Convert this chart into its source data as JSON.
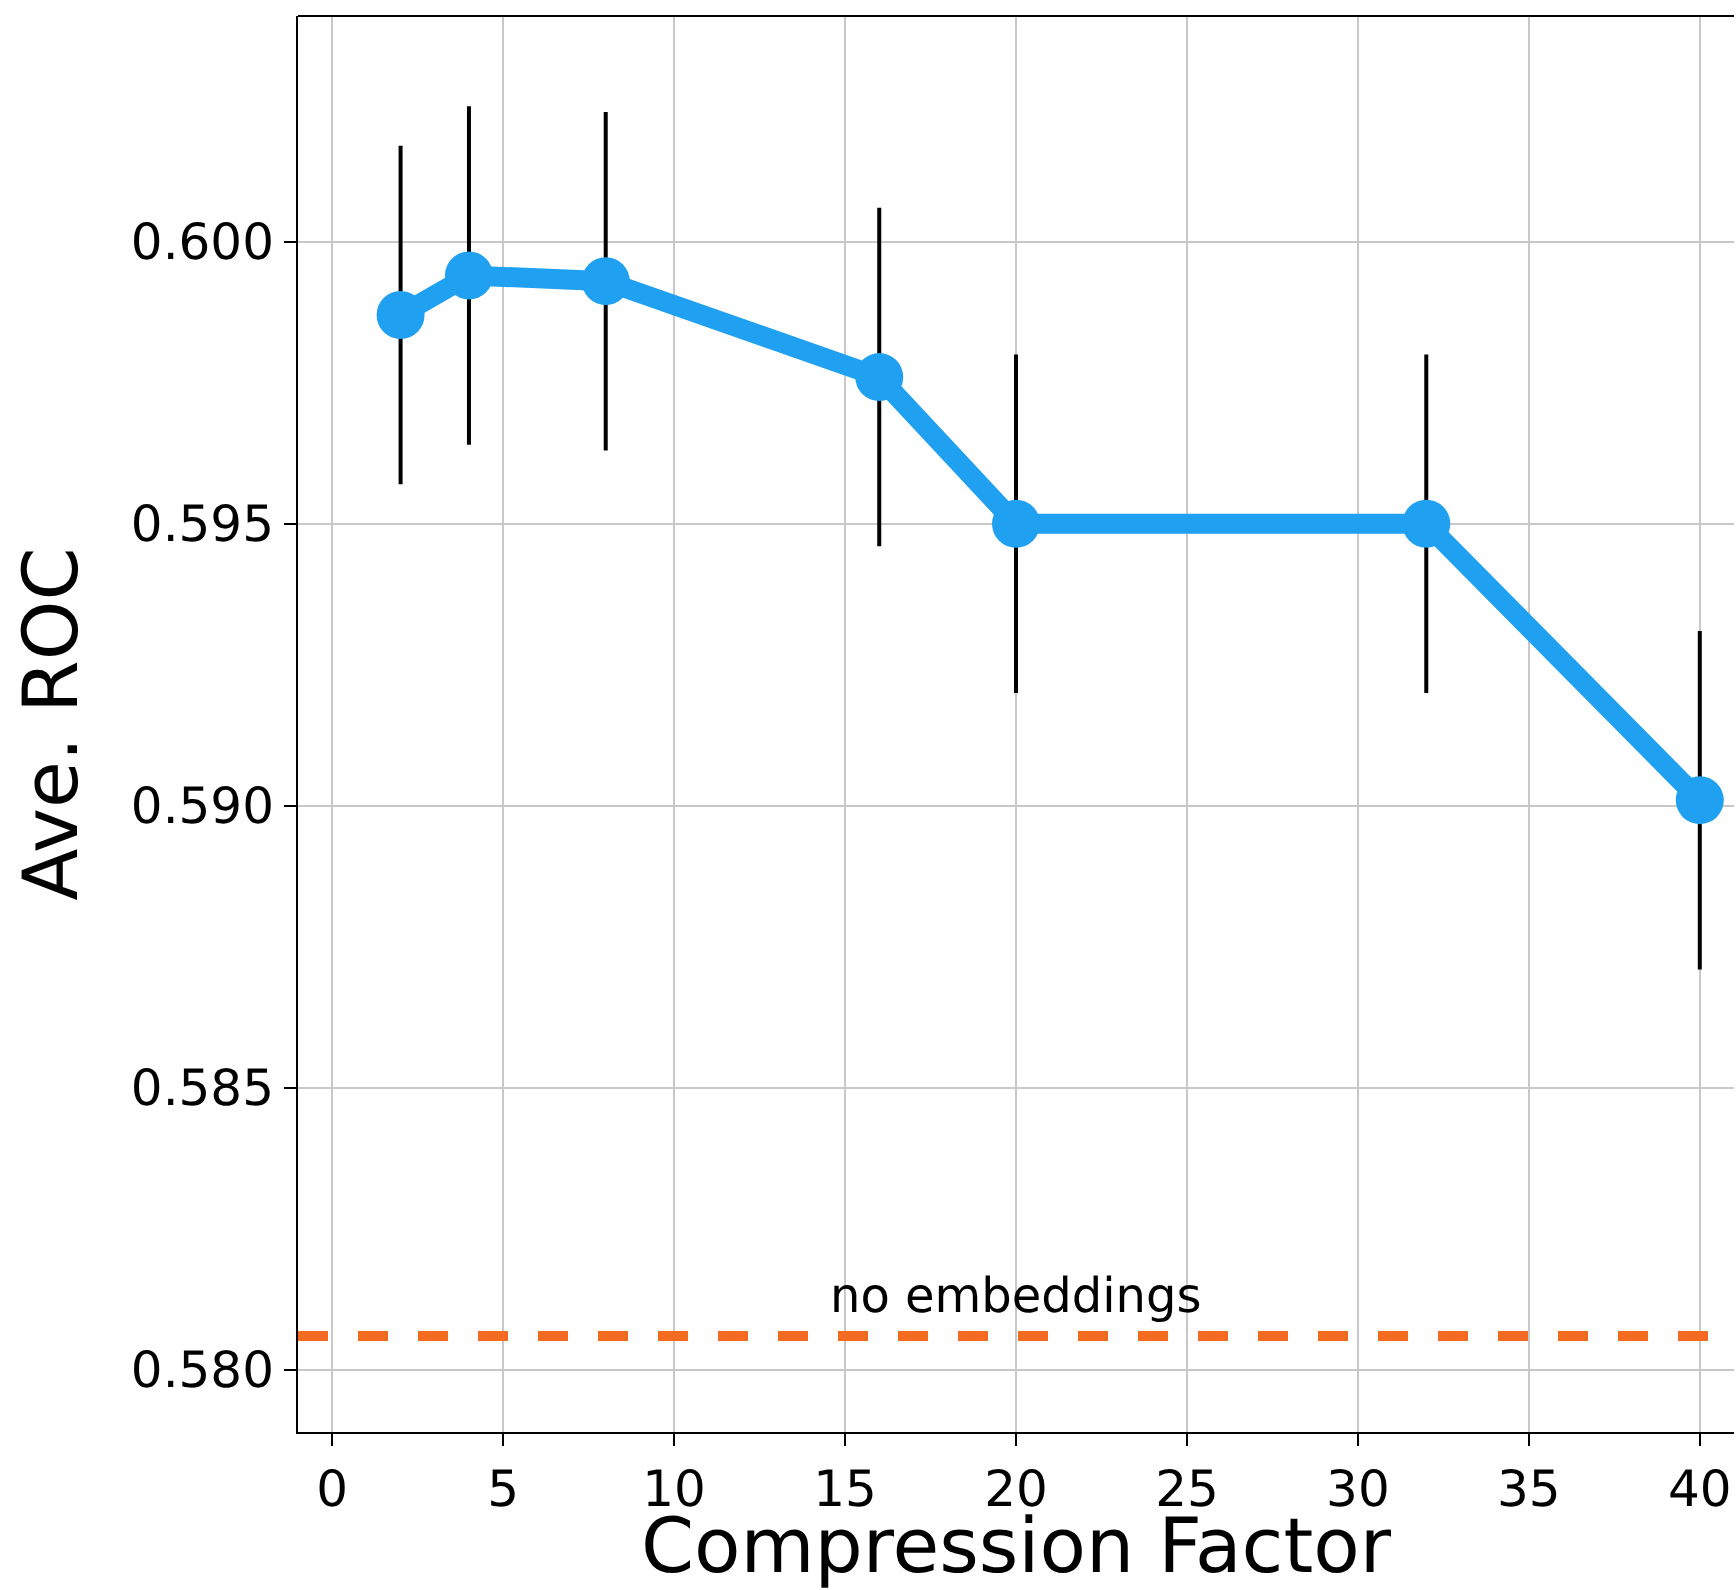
{
  "chart_data": {
    "type": "line",
    "xlabel": "Compression Factor",
    "ylabel": "Ave. ROC",
    "x": [
      2,
      4,
      8,
      16,
      20,
      32,
      40
    ],
    "series": [
      {
        "color": "#1fa0f0",
        "values": [
          0.5987,
          0.5994,
          0.5993,
          0.5976,
          0.595,
          0.595,
          0.5901
        ],
        "errors": [
          0.003,
          0.003,
          0.003,
          0.003,
          0.003,
          0.003,
          0.003
        ]
      }
    ],
    "ref_lines": [
      {
        "axis": "y",
        "value": 0.5806,
        "label": "no embeddings",
        "color": "#f26b21",
        "line_style": "dashed"
      }
    ],
    "xlim": [
      -1,
      41
    ],
    "xticks": [
      0,
      5,
      10,
      15,
      20,
      25,
      30,
      35,
      40
    ],
    "ylim": [
      0.5789,
      0.604
    ],
    "yticks": [
      {
        "value": 0.58,
        "label": "0.580"
      },
      0.585,
      {
        "value": 0.59,
        "label": "0.590"
      },
      0.595,
      {
        "value": 0.6,
        "label": "0.600"
      }
    ],
    "grid": true,
    "marker": "circle",
    "line_style": "solid"
  }
}
